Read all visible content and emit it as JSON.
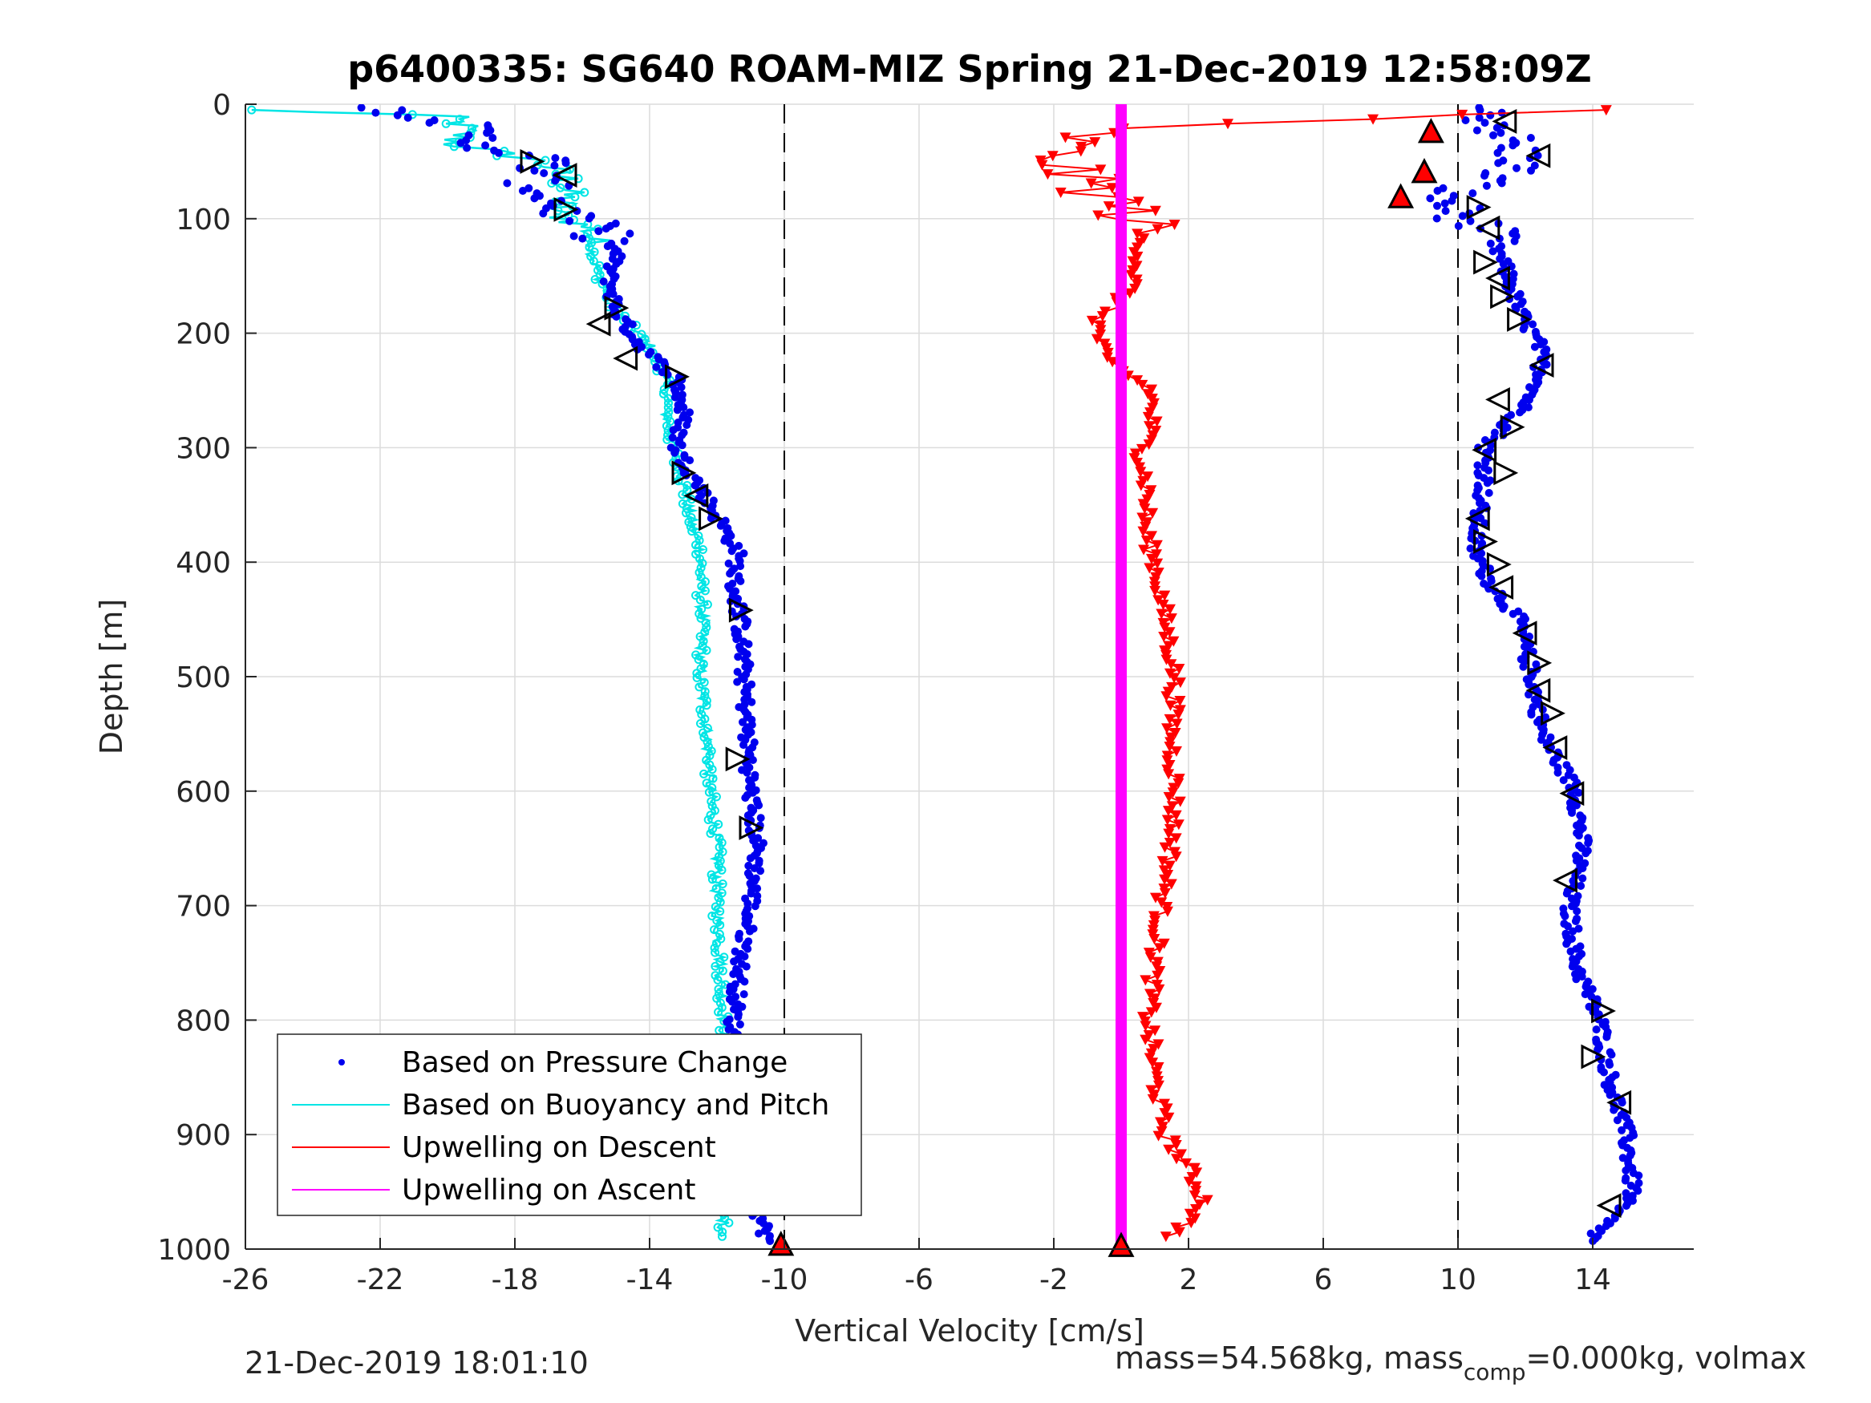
{
  "chart_data": {
    "type": "scatter",
    "title": "p6400335: SG640 ROAM-MIZ Spring 21-Dec-2019 12:58:09Z",
    "xlabel": "Vertical Velocity [cm/s]",
    "ylabel": "Depth [m]",
    "xlim": [
      -26,
      17
    ],
    "ylim": [
      1000,
      0
    ],
    "x_ticks": [
      -26,
      -22,
      -18,
      -14,
      -10,
      -6,
      -2,
      2,
      6,
      10,
      14
    ],
    "x_tick_labels": [
      "-26",
      "-22",
      "-18",
      "-14",
      "-10",
      "-6",
      "-2",
      "2",
      "6",
      "10",
      "14"
    ],
    "y_ticks": [
      0,
      100,
      200,
      300,
      400,
      500,
      600,
      700,
      800,
      900,
      1000
    ],
    "y_tick_labels": [
      "0",
      "100",
      "200",
      "300",
      "400",
      "500",
      "600",
      "700",
      "800",
      "900",
      "1000"
    ],
    "grid": true,
    "legend_position": "bottom-left",
    "dashed_reference_lines_x": [
      -10,
      10
    ],
    "colors": {
      "pressure": "#0000ee",
      "buoyancy": "#00e5e5",
      "descent": "#ff0000",
      "ascent": "#ff00ff",
      "axis": "#262626",
      "grid": "#dcdcdc"
    },
    "legend": [
      {
        "label": "Based on Pressure Change",
        "color": "#0000ee",
        "style": "dot"
      },
      {
        "label": "Based on Buoyancy and Pitch",
        "color": "#00e5e5",
        "style": "line"
      },
      {
        "label": "Upwelling on Descent",
        "color": "#ff0000",
        "style": "line"
      },
      {
        "label": "Upwelling on Ascent",
        "color": "#ff00ff",
        "style": "line"
      }
    ],
    "series": [
      {
        "name": "Based on Pressure Change",
        "style": "dots",
        "depth": [
          3,
          10,
          20,
          35,
          50,
          65,
          80,
          95,
          110,
          130,
          150,
          180,
          210,
          240,
          270,
          300,
          330,
          360,
          390,
          420,
          450,
          500,
          550,
          600,
          650,
          700,
          750,
          800,
          850,
          900,
          950,
          990
        ],
        "descent_velocity": [
          -22.5,
          -20.5,
          -19.5,
          -19.0,
          -17.0,
          -17.5,
          -17.0,
          -16.5,
          -15.5,
          -15.0,
          -15.2,
          -15.0,
          -14.3,
          -13.2,
          -13.0,
          -13.2,
          -12.6,
          -12.0,
          -11.4,
          -11.5,
          -11.3,
          -11.2,
          -11.1,
          -11.0,
          -10.8,
          -11.0,
          -11.3,
          -11.5,
          -11.5,
          -11.0,
          -11.0,
          -10.5
        ],
        "ascent_velocity": [
          10.5,
          10.8,
          11.3,
          11.5,
          12.0,
          11.0,
          9.5,
          10.0,
          10.8,
          11.2,
          11.5,
          11.8,
          12.4,
          12.5,
          11.8,
          10.8,
          10.8,
          10.6,
          10.5,
          11.0,
          11.8,
          12.2,
          12.5,
          13.5,
          13.7,
          13.3,
          13.5,
          14.2,
          14.5,
          15.0,
          15.2,
          14.0
        ]
      },
      {
        "name": "Based on Buoyancy and Pitch",
        "style": "line",
        "depth": [
          5,
          10,
          20,
          35,
          50,
          65,
          80,
          95,
          110,
          130,
          150,
          180,
          210,
          240,
          270,
          300,
          330,
          360,
          390,
          420,
          450,
          500,
          550,
          600,
          650,
          700,
          750,
          800,
          850,
          900,
          950,
          990
        ],
        "velocity": [
          -26.0,
          -20.0,
          -19.5,
          -19.8,
          -17.2,
          -16.5,
          -16.5,
          -16.8,
          -15.7,
          -15.7,
          -15.5,
          -15.0,
          -14.0,
          -13.5,
          -13.5,
          -13.3,
          -13.0,
          -12.8,
          -12.5,
          -12.5,
          -12.4,
          -12.5,
          -12.3,
          -12.2,
          -12.0,
          -12.0,
          -11.9,
          -11.8,
          -11.7,
          -11.6,
          -11.8,
          -11.8
        ]
      },
      {
        "name": "Upwelling on Descent",
        "style": "line-triangles",
        "depth": [
          5,
          20,
          40,
          60,
          80,
          100,
          130,
          160,
          190,
          220,
          250,
          280,
          310,
          340,
          370,
          400,
          450,
          500,
          550,
          600,
          650,
          700,
          750,
          800,
          850,
          900,
          930,
          960,
          990
        ],
        "velocity": [
          14.5,
          -0.5,
          -2.0,
          -1.5,
          -0.5,
          0.5,
          0.6,
          0.3,
          -0.7,
          -0.6,
          0.9,
          0.9,
          0.6,
          0.8,
          0.7,
          1.0,
          1.3,
          1.6,
          1.5,
          1.6,
          1.5,
          1.2,
          1.0,
          0.8,
          1.0,
          1.3,
          2.0,
          2.5,
          1.5
        ]
      },
      {
        "name": "Upwelling on Ascent",
        "style": "thick-line",
        "depth": [
          0,
          1000
        ],
        "velocity": [
          0.0,
          0.0
        ]
      }
    ],
    "open_triangle_markers": [
      {
        "x": -17.5,
        "y": 50,
        "dir": "right"
      },
      {
        "x": -16.5,
        "y": 62,
        "dir": "left"
      },
      {
        "x": -16.5,
        "y": 92,
        "dir": "right"
      },
      {
        "x": -15.0,
        "y": 178,
        "dir": "right"
      },
      {
        "x": -15.5,
        "y": 192,
        "dir": "left"
      },
      {
        "x": -14.7,
        "y": 222,
        "dir": "left"
      },
      {
        "x": -13.2,
        "y": 238,
        "dir": "right"
      },
      {
        "x": -13.0,
        "y": 322,
        "dir": "right"
      },
      {
        "x": -12.6,
        "y": 342,
        "dir": "left"
      },
      {
        "x": -12.2,
        "y": 362,
        "dir": "right"
      },
      {
        "x": -11.3,
        "y": 442,
        "dir": "right"
      },
      {
        "x": -11.4,
        "y": 572,
        "dir": "right"
      },
      {
        "x": -11.0,
        "y": 632,
        "dir": "right"
      },
      {
        "x": -11.1,
        "y": 888,
        "dir": "right"
      },
      {
        "x": -10.8,
        "y": 918,
        "dir": "left"
      },
      {
        "x": -10.8,
        "y": 950,
        "dir": "right"
      },
      {
        "x": 11.4,
        "y": 15,
        "dir": "left"
      },
      {
        "x": 12.4,
        "y": 45,
        "dir": "left"
      },
      {
        "x": 10.6,
        "y": 90,
        "dir": "right"
      },
      {
        "x": 10.9,
        "y": 108,
        "dir": "left"
      },
      {
        "x": 10.8,
        "y": 138,
        "dir": "right"
      },
      {
        "x": 11.2,
        "y": 152,
        "dir": "left"
      },
      {
        "x": 11.3,
        "y": 168,
        "dir": "right"
      },
      {
        "x": 11.8,
        "y": 188,
        "dir": "right"
      },
      {
        "x": 12.5,
        "y": 228,
        "dir": "left"
      },
      {
        "x": 11.2,
        "y": 258,
        "dir": "left"
      },
      {
        "x": 11.6,
        "y": 282,
        "dir": "right"
      },
      {
        "x": 10.8,
        "y": 302,
        "dir": "left"
      },
      {
        "x": 11.4,
        "y": 322,
        "dir": "right"
      },
      {
        "x": 10.6,
        "y": 362,
        "dir": "left"
      },
      {
        "x": 10.8,
        "y": 382,
        "dir": "right"
      },
      {
        "x": 11.2,
        "y": 402,
        "dir": "right"
      },
      {
        "x": 11.3,
        "y": 422,
        "dir": "left"
      },
      {
        "x": 12.0,
        "y": 462,
        "dir": "left"
      },
      {
        "x": 12.4,
        "y": 488,
        "dir": "right"
      },
      {
        "x": 12.4,
        "y": 512,
        "dir": "left"
      },
      {
        "x": 12.8,
        "y": 532,
        "dir": "right"
      },
      {
        "x": 12.9,
        "y": 562,
        "dir": "left"
      },
      {
        "x": 13.4,
        "y": 602,
        "dir": "left"
      },
      {
        "x": 13.2,
        "y": 678,
        "dir": "left"
      },
      {
        "x": 14.3,
        "y": 792,
        "dir": "right"
      },
      {
        "x": 14.0,
        "y": 832,
        "dir": "right"
      },
      {
        "x": 14.8,
        "y": 872,
        "dir": "left"
      },
      {
        "x": 14.5,
        "y": 962,
        "dir": "left"
      }
    ],
    "filled_red_triangle_markers": [
      {
        "x": 9.2,
        "y": 25
      },
      {
        "x": 9.0,
        "y": 60
      },
      {
        "x": 8.3,
        "y": 82
      },
      {
        "x": -10.1,
        "y": 997
      },
      {
        "x": 0.0,
        "y": 998
      }
    ]
  },
  "footer": {
    "timestamp": "21-Dec-2019 18:01:10",
    "mass_text": "mass=54.568kg, mass",
    "mass_sub": "comp",
    "mass_text_2": "=0.000kg, volmax"
  }
}
